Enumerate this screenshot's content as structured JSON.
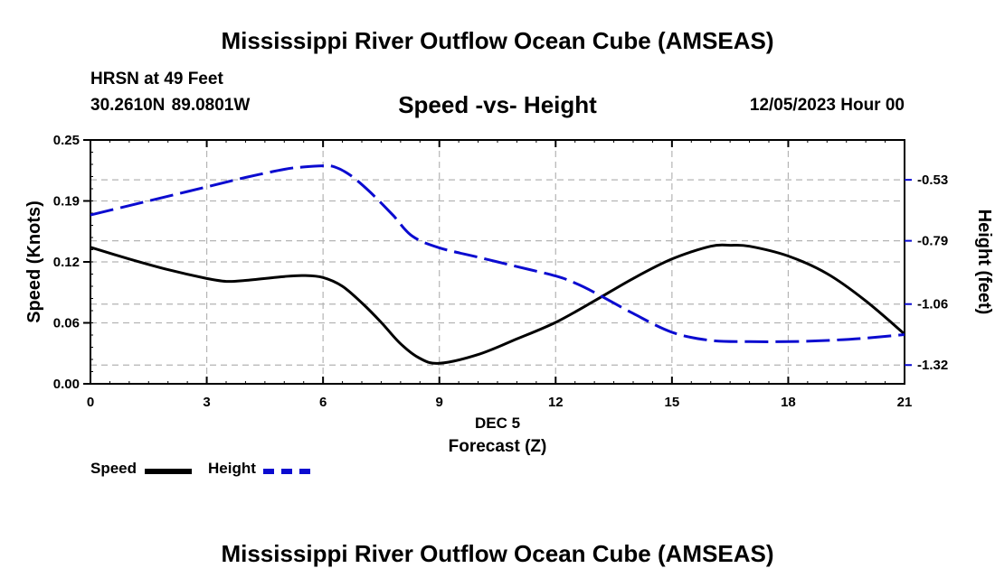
{
  "page_title": "Mississippi River Outflow Ocean Cube (AMSEAS)",
  "footer_title": "Mississippi River Outflow Ocean Cube (AMSEAS)",
  "station": {
    "label": "HRSN at 49 Feet",
    "coordinates": "30.2610N  89.0801W"
  },
  "plot_subtitle": "Speed -vs- Height",
  "datetime": "12/05/2023 Hour 00",
  "colors": {
    "speed": "#000000",
    "height": "#0b0bd0",
    "grid": "#b4b4b4"
  },
  "chart_data": {
    "type": "line",
    "title": "Speed -vs- Height",
    "xlabel": "Forecast (Z)",
    "xsublabel": "DEC 5",
    "ylabel": "Speed (Knots)",
    "y2label": "Height (feet)",
    "xlim": [
      0,
      21
    ],
    "ylim": [
      0,
      0.25
    ],
    "y2lim": [
      -1.4,
      -0.36
    ],
    "grid": true,
    "legend": "bottom-left",
    "x_ticks": [
      "0",
      "3",
      "6",
      "9",
      "12",
      "15",
      "18",
      "21"
    ],
    "x_tick_values": [
      0,
      3,
      6,
      9,
      12,
      15,
      18,
      21
    ],
    "y_ticks": [
      "0.00",
      "0.06",
      "0.12",
      "0.19",
      "0.25"
    ],
    "y_tick_values": [
      0,
      0.0625,
      0.125,
      0.1875,
      0.25
    ],
    "y2_ticks": [
      "-0.53",
      "-0.79",
      "-1.06",
      "-1.32"
    ],
    "y2_tick_values": [
      -0.53,
      -0.79,
      -1.06,
      -1.32
    ],
    "series": [
      {
        "name": "Speed",
        "axis": "left",
        "style": "solid",
        "x": [
          0,
          1,
          2,
          3,
          3.5,
          4,
          5,
          5.5,
          6,
          6.5,
          7,
          7.5,
          8,
          8.5,
          9,
          10,
          11,
          12,
          13,
          14,
          15,
          16,
          16.5,
          17,
          18,
          19,
          20,
          21
        ],
        "values": [
          0.14,
          0.128,
          0.117,
          0.108,
          0.105,
          0.106,
          0.11,
          0.111,
          0.109,
          0.1,
          0.083,
          0.063,
          0.041,
          0.026,
          0.021,
          0.03,
          0.046,
          0.063,
          0.085,
          0.108,
          0.128,
          0.141,
          0.142,
          0.141,
          0.131,
          0.113,
          0.085,
          0.051
        ]
      },
      {
        "name": "Height",
        "axis": "right",
        "style": "dashed",
        "x": [
          0,
          1,
          2,
          3,
          4,
          5,
          5.5,
          6,
          6.3,
          6.7,
          7.2,
          7.8,
          8.3,
          9,
          10,
          11,
          12,
          12.5,
          13,
          14,
          15,
          16,
          17,
          18,
          19,
          20,
          21
        ],
        "values": [
          -0.68,
          -0.64,
          -0.6,
          -0.56,
          -0.52,
          -0.485,
          -0.475,
          -0.47,
          -0.475,
          -0.51,
          -0.58,
          -0.68,
          -0.77,
          -0.82,
          -0.86,
          -0.9,
          -0.94,
          -0.97,
          -1.01,
          -1.1,
          -1.18,
          -1.215,
          -1.22,
          -1.22,
          -1.215,
          -1.205,
          -1.19
        ]
      }
    ]
  }
}
